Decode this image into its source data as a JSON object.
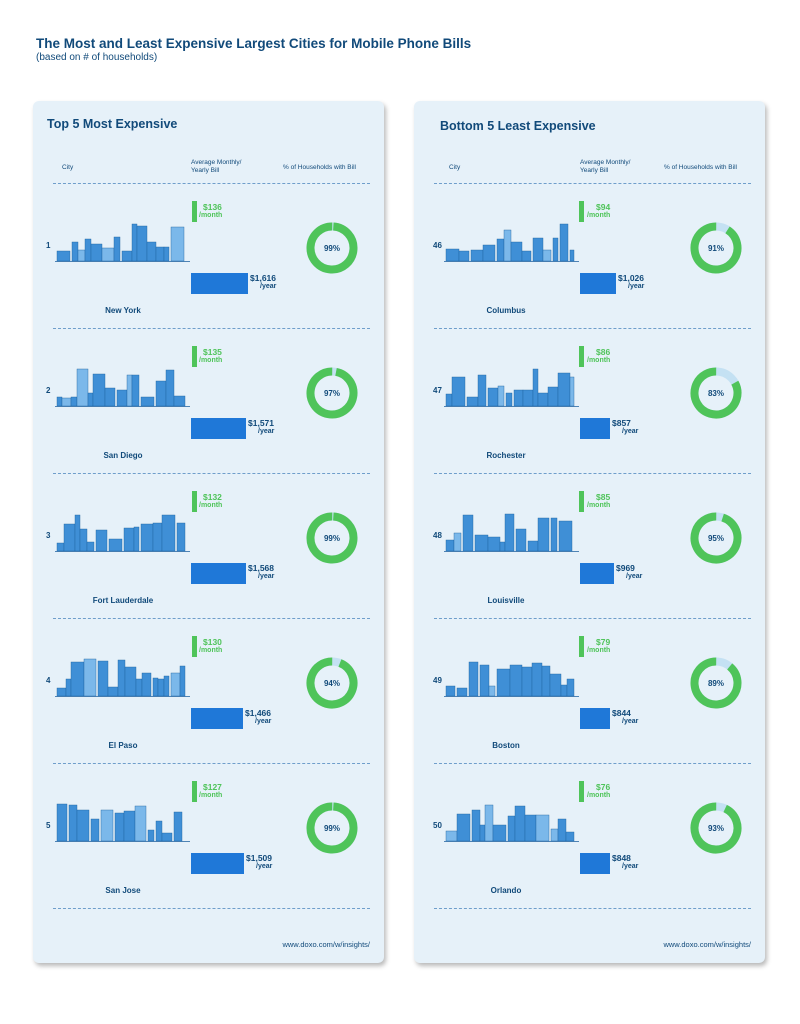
{
  "title": "The Most and Least Expensive Largest Cities for Mobile Phone Bills",
  "subtitle": "(based on # of households)",
  "colors": {
    "title": "#114a7a",
    "monthly": "#4fc45a",
    "yearly": "#1f78d8",
    "donut_track": "#c4e1f3",
    "panel": "#e6f1f9",
    "skyline": "#3f8fd6"
  },
  "chart_data": [
    {
      "type": "table",
      "title": "Top 5 Most Expensive",
      "headers": {
        "city": "City",
        "bill_line1": "Average Monthly/",
        "bill_line2": "Yearly Bill",
        "pct": "% of Households with Bill"
      },
      "monthly_unit": "/month",
      "yearly_unit": "/year",
      "footer": "www.doxo.com/w/insights/",
      "rows": [
        {
          "rank": "1",
          "city": "New York",
          "monthly": 136,
          "monthly_label": "$136",
          "yearly": 1616,
          "yearly_label": "$1,616",
          "pct": 99,
          "pct_label": "99%",
          "skyline_icon": "new-york-skyline-icon"
        },
        {
          "rank": "2",
          "city": "San Diego",
          "monthly": 135,
          "monthly_label": "$135",
          "yearly": 1571,
          "yearly_label": "$1,571",
          "pct": 97,
          "pct_label": "97%",
          "skyline_icon": "san-diego-skyline-icon"
        },
        {
          "rank": "3",
          "city": "Fort Lauderdale",
          "monthly": 132,
          "monthly_label": "$132",
          "yearly": 1568,
          "yearly_label": "$1,568",
          "pct": 99,
          "pct_label": "99%",
          "skyline_icon": "fort-lauderdale-skyline-icon"
        },
        {
          "rank": "4",
          "city": "El Paso",
          "monthly": 130,
          "monthly_label": "$130",
          "yearly": 1466,
          "yearly_label": "$1,466",
          "pct": 94,
          "pct_label": "94%",
          "skyline_icon": "el-paso-skyline-icon"
        },
        {
          "rank": "5",
          "city": "San Jose",
          "monthly": 127,
          "monthly_label": "$127",
          "yearly": 1509,
          "yearly_label": "$1,509",
          "pct": 99,
          "pct_label": "99%",
          "skyline_icon": "san-jose-skyline-icon"
        }
      ]
    },
    {
      "type": "table",
      "title": "Bottom 5 Least Expensive",
      "headers": {
        "city": "City",
        "bill_line1": "Average Monthly/",
        "bill_line2": "Yearly Bill",
        "pct": "% of Households with Bill"
      },
      "monthly_unit": "/month",
      "yearly_unit": "/year",
      "footer": "www.doxo.com/w/insights/",
      "rows": [
        {
          "rank": "46",
          "city": "Columbus",
          "monthly": 94,
          "monthly_label": "$94",
          "yearly": 1026,
          "yearly_label": "$1,026",
          "pct": 91,
          "pct_label": "91%",
          "skyline_icon": "columbus-skyline-icon"
        },
        {
          "rank": "47",
          "city": "Rochester",
          "monthly": 86,
          "monthly_label": "$86",
          "yearly": 857,
          "yearly_label": "$857",
          "pct": 83,
          "pct_label": "83%",
          "skyline_icon": "rochester-skyline-icon"
        },
        {
          "rank": "48",
          "city": "Louisville",
          "monthly": 85,
          "monthly_label": "$85",
          "yearly": 969,
          "yearly_label": "$969",
          "pct": 95,
          "pct_label": "95%",
          "skyline_icon": "louisville-skyline-icon"
        },
        {
          "rank": "49",
          "city": "Boston",
          "monthly": 79,
          "monthly_label": "$79",
          "yearly": 844,
          "yearly_label": "$844",
          "pct": 89,
          "pct_label": "89%",
          "skyline_icon": "boston-skyline-icon"
        },
        {
          "rank": "50",
          "city": "Orlando",
          "monthly": 76,
          "monthly_label": "$76",
          "yearly": 848,
          "yearly_label": "$848",
          "pct": 93,
          "pct_label": "93%",
          "skyline_icon": "orlando-skyline-icon"
        }
      ]
    }
  ]
}
